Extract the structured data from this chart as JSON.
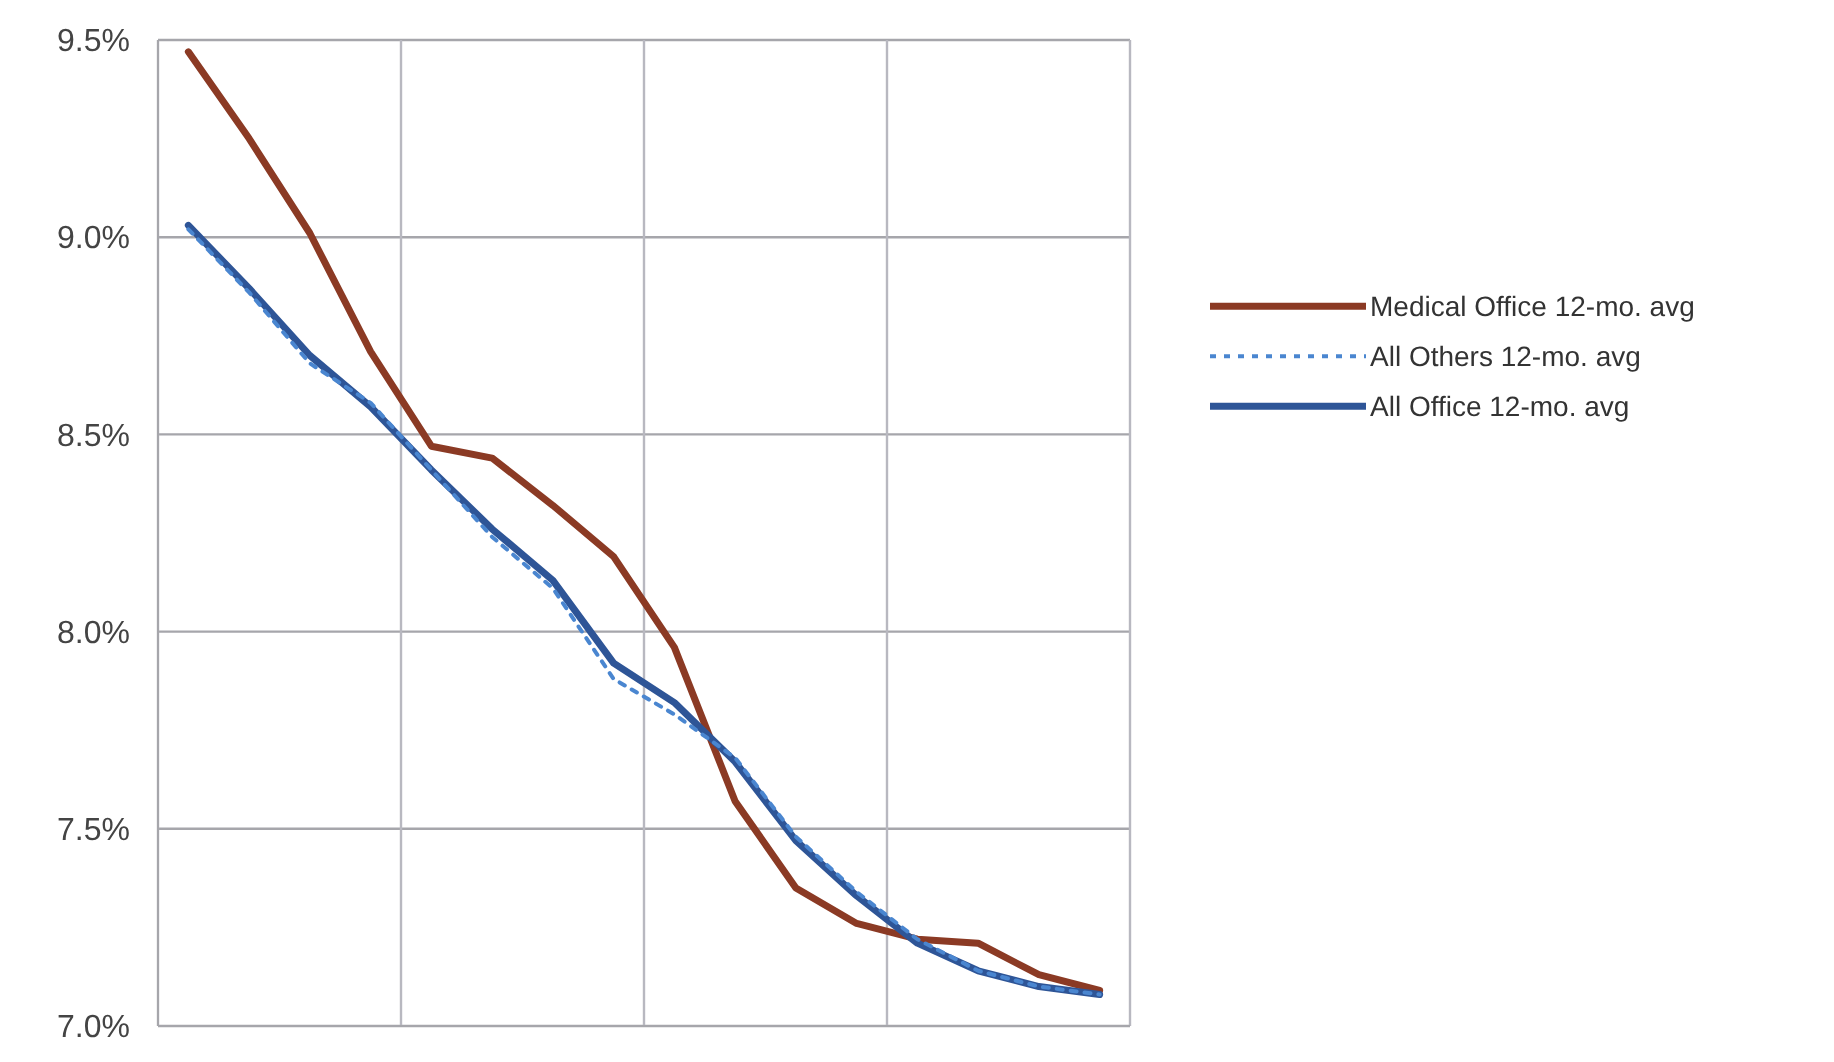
{
  "chart_data": {
    "type": "line",
    "categories": [
      null,
      null,
      null,
      null,
      null,
      null,
      null,
      null,
      null,
      null,
      null,
      null,
      null,
      null,
      null,
      null
    ],
    "series": [
      {
        "name": "Medical Office 12-mo. avg",
        "color": "#8b3a24",
        "line_style": "solid",
        "values": [
          9.47,
          9.25,
          9.01,
          8.71,
          8.47,
          8.44,
          8.32,
          8.19,
          7.96,
          7.57,
          7.35,
          7.26,
          7.22,
          7.21,
          7.13,
          7.09
        ]
      },
      {
        "name": "All Others 12-mo. avg",
        "color": "#4a86d0",
        "line_style": "dotted",
        "values": [
          9.02,
          8.86,
          8.68,
          8.58,
          8.41,
          8.24,
          8.11,
          7.88,
          7.79,
          7.68,
          7.48,
          7.34,
          7.22,
          7.14,
          7.1,
          7.08
        ]
      },
      {
        "name": "All Office 12-mo. avg",
        "color": "#2e5597",
        "line_style": "solid",
        "values": [
          9.03,
          8.87,
          8.7,
          8.57,
          8.41,
          8.26,
          8.13,
          7.92,
          7.82,
          7.67,
          7.47,
          7.33,
          7.21,
          7.14,
          7.1,
          7.08
        ]
      }
    ],
    "ylim": [
      7.0,
      9.5
    ],
    "yticks": [
      {
        "value": 7.0,
        "label": "7.0%"
      },
      {
        "value": 7.5,
        "label": "7.5%"
      },
      {
        "value": 8.0,
        "label": "8.0%"
      },
      {
        "value": 8.5,
        "label": "8.5%"
      },
      {
        "value": 9.0,
        "label": "9.0%"
      },
      {
        "value": 9.5,
        "label": "9.5%"
      }
    ],
    "grid": true,
    "legend": "right"
  }
}
